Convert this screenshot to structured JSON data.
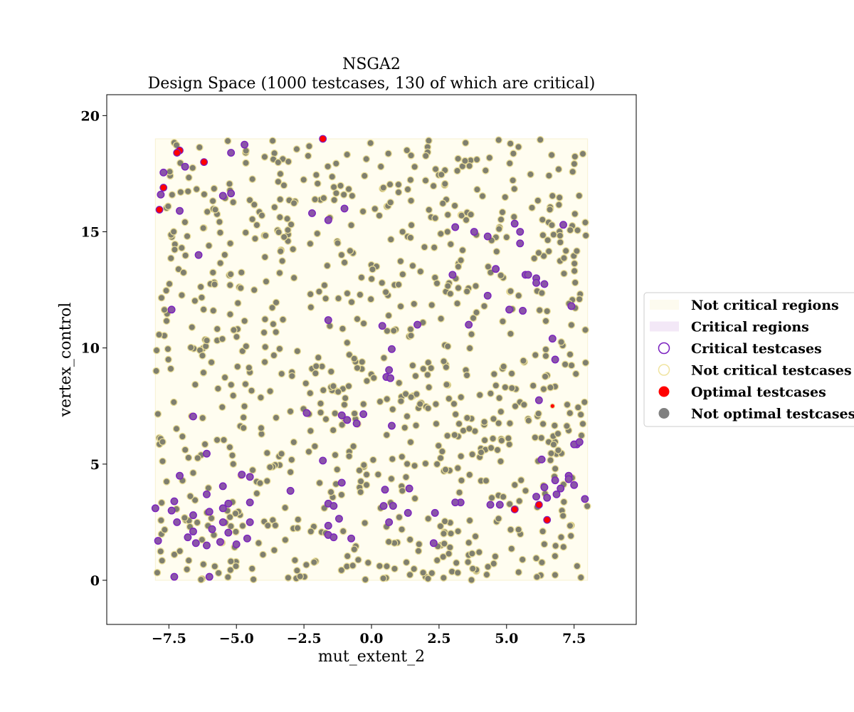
{
  "chart_data": {
    "type": "scatter",
    "title": "NSGA2",
    "subtitle": "Design Space (1000 testcases, 130 of which are critical)",
    "xlabel": "mut_extent_2",
    "ylabel": "vertex_control",
    "xlim": [
      -9.8,
      9.8
    ],
    "ylim": [
      -1.9,
      20.9
    ],
    "xticks": [
      -7.5,
      -5.0,
      -2.5,
      0.0,
      2.5,
      5.0,
      7.5
    ],
    "xtick_labels": [
      "−7.5",
      "−5.0",
      "−2.5",
      "0.0",
      "2.5",
      "5.0",
      "7.5"
    ],
    "yticks": [
      0,
      5,
      10,
      15,
      20
    ],
    "ytick_labels": [
      "0",
      "5",
      "10",
      "15",
      "20"
    ],
    "grid": false,
    "legend_position": "right",
    "regions": [
      {
        "name": "Not critical regions",
        "x": [
          -8,
          8
        ],
        "y": [
          0,
          19
        ],
        "color": "#fffdf0"
      }
    ],
    "legend": [
      {
        "label": "Not critical regions",
        "marker": "patch",
        "color": "#fdfbef"
      },
      {
        "label": "Critical regions",
        "marker": "patch",
        "color": "#f3e8f7"
      },
      {
        "label": "Critical testcases",
        "marker": "ring",
        "color": "#7a1fbf"
      },
      {
        "label": "Not critical testcases",
        "marker": "ring",
        "color": "#f0e4a0"
      },
      {
        "label": "Optimal testcases",
        "marker": "dot",
        "color": "#ff0000"
      },
      {
        "label": "Not optimal testcases",
        "marker": "dot",
        "color": "#808080"
      }
    ],
    "colors": {
      "optimal_fill": "#ff0000",
      "not_optimal_fill": "#7f7f6f",
      "critical_fill": "#8a55a8",
      "critical_edge": "#7a1fbf",
      "not_critical_edge": "#e8dc96"
    },
    "series": [
      {
        "name": "Optimal testcases",
        "points": [
          [
            -7.1,
            18.5
          ],
          [
            -7.2,
            18.4
          ],
          [
            -7.7,
            16.9
          ],
          [
            -7.85,
            15.95
          ],
          [
            -6.2,
            18.0
          ],
          [
            -1.8,
            19.0
          ],
          [
            5.3,
            3.05
          ],
          [
            6.2,
            3.25
          ],
          [
            6.5,
            2.6
          ],
          [
            6.7,
            7.5
          ]
        ]
      },
      {
        "name": "Critical testcases",
        "points": [
          [
            -7.7,
            17.55
          ],
          [
            -7.8,
            16.6
          ],
          [
            -6.9,
            17.8
          ],
          [
            -7.1,
            15.9
          ],
          [
            -5.2,
            18.4
          ],
          [
            -4.7,
            18.75
          ],
          [
            -5.5,
            16.55
          ],
          [
            -5.2,
            16.65
          ],
          [
            -6.4,
            14.0
          ],
          [
            -1.6,
            15.5
          ],
          [
            -1.0,
            16.0
          ],
          [
            -2.2,
            15.8
          ],
          [
            -7.4,
            11.65
          ],
          [
            -6.6,
            7.05
          ],
          [
            -6.1,
            5.45
          ],
          [
            -8.0,
            3.1
          ],
          [
            -7.9,
            1.7
          ],
          [
            -7.3,
            3.4
          ],
          [
            -7.4,
            3.0
          ],
          [
            -7.2,
            2.5
          ],
          [
            -7.1,
            4.5
          ],
          [
            -6.6,
            2.8
          ],
          [
            -6.8,
            1.85
          ],
          [
            -6.6,
            2.1
          ],
          [
            -6.5,
            1.6
          ],
          [
            -6.1,
            1.5
          ],
          [
            -5.9,
            2.2
          ],
          [
            -6.0,
            2.95
          ],
          [
            -6.1,
            3.7
          ],
          [
            -5.5,
            4.05
          ],
          [
            -5.5,
            3.1
          ],
          [
            -5.3,
            3.3
          ],
          [
            -5.5,
            2.5
          ],
          [
            -5.3,
            2.05
          ],
          [
            -5.6,
            1.65
          ],
          [
            -5.0,
            1.55
          ],
          [
            -4.8,
            4.55
          ],
          [
            -4.5,
            4.45
          ],
          [
            -4.5,
            3.35
          ],
          [
            -4.5,
            2.5
          ],
          [
            -4.6,
            1.8
          ],
          [
            -7.3,
            0.15
          ],
          [
            -6.0,
            0.15
          ],
          [
            -3.0,
            3.85
          ],
          [
            -1.8,
            5.15
          ],
          [
            -2.4,
            7.2
          ],
          [
            -1.6,
            11.2
          ],
          [
            -1.1,
            4.2
          ],
          [
            -1.6,
            3.3
          ],
          [
            -1.4,
            3.2
          ],
          [
            -1.2,
            2.65
          ],
          [
            -1.6,
            2.35
          ],
          [
            -1.6,
            1.95
          ],
          [
            -1.4,
            1.85
          ],
          [
            -0.75,
            1.8
          ],
          [
            -0.9,
            6.9
          ],
          [
            -0.55,
            6.75
          ],
          [
            -0.3,
            7.15
          ],
          [
            -1.1,
            7.1
          ],
          [
            0.4,
            10.95
          ],
          [
            0.65,
            9.05
          ],
          [
            0.75,
            9.95
          ],
          [
            0.55,
            8.75
          ],
          [
            0.7,
            8.7
          ],
          [
            0.75,
            6.65
          ],
          [
            0.5,
            3.9
          ],
          [
            0.65,
            2.5
          ],
          [
            0.45,
            3.2
          ],
          [
            0.8,
            3.2
          ],
          [
            1.4,
            3.95
          ],
          [
            1.35,
            2.9
          ],
          [
            1.7,
            11.0
          ],
          [
            2.35,
            2.9
          ],
          [
            2.3,
            1.6
          ],
          [
            3.0,
            13.15
          ],
          [
            3.1,
            15.2
          ],
          [
            3.3,
            3.35
          ],
          [
            3.1,
            3.35
          ],
          [
            3.6,
            11.0
          ],
          [
            3.8,
            15.0
          ],
          [
            4.3,
            14.8
          ],
          [
            4.3,
            12.25
          ],
          [
            4.4,
            3.25
          ],
          [
            4.6,
            13.4
          ],
          [
            4.75,
            3.25
          ],
          [
            5.1,
            11.65
          ],
          [
            5.3,
            15.35
          ],
          [
            5.5,
            15.0
          ],
          [
            5.5,
            14.5
          ],
          [
            5.6,
            11.6
          ],
          [
            5.7,
            13.15
          ],
          [
            5.8,
            13.15
          ],
          [
            6.1,
            13.0
          ],
          [
            6.1,
            12.8
          ],
          [
            6.4,
            12.75
          ],
          [
            6.7,
            10.4
          ],
          [
            6.8,
            9.5
          ],
          [
            6.2,
            7.75
          ],
          [
            6.1,
            3.6
          ],
          [
            6.3,
            5.2
          ],
          [
            6.4,
            4.0
          ],
          [
            6.5,
            3.55
          ],
          [
            6.8,
            4.3
          ],
          [
            6.85,
            3.7
          ],
          [
            7.0,
            3.95
          ],
          [
            7.3,
            4.5
          ],
          [
            7.3,
            4.35
          ],
          [
            7.6,
            5.85
          ],
          [
            7.5,
            5.85
          ],
          [
            7.5,
            4.1
          ],
          [
            7.7,
            5.95
          ],
          [
            7.1,
            15.3
          ],
          [
            7.4,
            11.8
          ],
          [
            7.9,
            3.5
          ]
        ]
      }
    ]
  }
}
